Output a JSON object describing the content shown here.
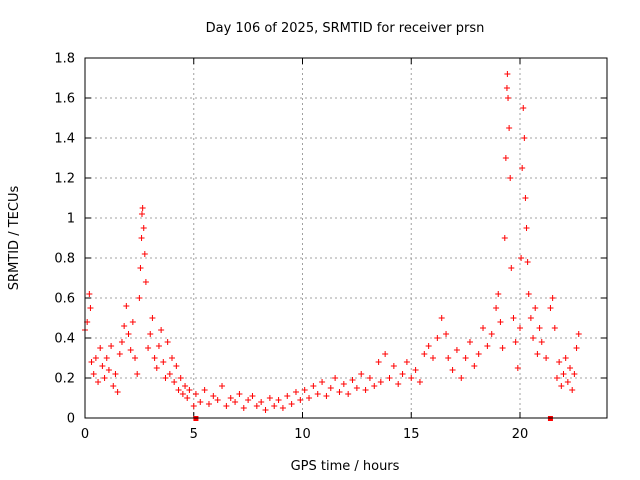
{
  "chart_data": {
    "type": "scatter",
    "title": "Day 106 of 2025, SRMTID for receiver prsn",
    "xlabel": "GPS time / hours",
    "ylabel": "SRMTID / TECUs",
    "xlim": [
      0,
      24
    ],
    "ylim": [
      0,
      1.8
    ],
    "xticks": [
      0,
      5,
      10,
      15,
      20
    ],
    "xtick_labels": [
      "0",
      "5",
      "10",
      "15",
      "20"
    ],
    "yticks": [
      0,
      0.2,
      0.4,
      0.6,
      0.8,
      1.0,
      1.2,
      1.4,
      1.6,
      1.8
    ],
    "ytick_labels": [
      "0",
      "0.2",
      "0.4",
      "0.6",
      "0.8",
      "1",
      "1.2",
      "1.4",
      "1.6",
      "1.8"
    ],
    "grid": true,
    "marker": "+",
    "color": "#ff0000",
    "series": [
      {
        "name": "SRMTID",
        "points": [
          [
            0.0,
            0.44
          ],
          [
            0.1,
            0.48
          ],
          [
            0.2,
            0.62
          ],
          [
            0.25,
            0.55
          ],
          [
            0.3,
            0.28
          ],
          [
            0.4,
            0.22
          ],
          [
            0.5,
            0.3
          ],
          [
            0.6,
            0.18
          ],
          [
            0.7,
            0.35
          ],
          [
            0.8,
            0.26
          ],
          [
            0.9,
            0.2
          ],
          [
            1.0,
            0.3
          ],
          [
            1.1,
            0.24
          ],
          [
            1.2,
            0.36
          ],
          [
            1.3,
            0.16
          ],
          [
            1.4,
            0.22
          ],
          [
            1.5,
            0.13
          ],
          [
            1.6,
            0.32
          ],
          [
            1.7,
            0.38
          ],
          [
            1.8,
            0.46
          ],
          [
            1.9,
            0.56
          ],
          [
            2.0,
            0.42
          ],
          [
            2.1,
            0.34
          ],
          [
            2.2,
            0.48
          ],
          [
            2.3,
            0.3
          ],
          [
            2.4,
            0.22
          ],
          [
            2.5,
            0.6
          ],
          [
            2.55,
            0.75
          ],
          [
            2.6,
            0.9
          ],
          [
            2.62,
            1.02
          ],
          [
            2.65,
            1.05
          ],
          [
            2.7,
            0.95
          ],
          [
            2.75,
            0.82
          ],
          [
            2.8,
            0.68
          ],
          [
            2.9,
            0.35
          ],
          [
            3.0,
            0.42
          ],
          [
            3.1,
            0.5
          ],
          [
            3.2,
            0.3
          ],
          [
            3.3,
            0.25
          ],
          [
            3.4,
            0.36
          ],
          [
            3.5,
            0.44
          ],
          [
            3.6,
            0.28
          ],
          [
            3.7,
            0.2
          ],
          [
            3.8,
            0.38
          ],
          [
            3.9,
            0.22
          ],
          [
            4.0,
            0.3
          ],
          [
            4.1,
            0.18
          ],
          [
            4.2,
            0.26
          ],
          [
            4.3,
            0.14
          ],
          [
            4.4,
            0.2
          ],
          [
            4.5,
            0.12
          ],
          [
            4.6,
            0.16
          ],
          [
            4.7,
            0.1
          ],
          [
            4.8,
            0.14
          ],
          [
            5.0,
            0.06
          ],
          [
            5.1,
            0.12
          ],
          [
            5.3,
            0.08
          ],
          [
            5.5,
            0.14
          ],
          [
            5.7,
            0.07
          ],
          [
            5.9,
            0.11
          ],
          [
            6.1,
            0.09
          ],
          [
            6.3,
            0.16
          ],
          [
            6.5,
            0.06
          ],
          [
            6.7,
            0.1
          ],
          [
            6.9,
            0.08
          ],
          [
            7.1,
            0.12
          ],
          [
            7.3,
            0.05
          ],
          [
            7.5,
            0.09
          ],
          [
            7.7,
            0.11
          ],
          [
            7.9,
            0.06
          ],
          [
            8.1,
            0.08
          ],
          [
            8.3,
            0.04
          ],
          [
            8.5,
            0.1
          ],
          [
            8.7,
            0.06
          ],
          [
            8.9,
            0.09
          ],
          [
            9.1,
            0.05
          ],
          [
            9.3,
            0.11
          ],
          [
            9.5,
            0.07
          ],
          [
            9.7,
            0.13
          ],
          [
            9.9,
            0.09
          ],
          [
            10.1,
            0.14
          ],
          [
            10.3,
            0.1
          ],
          [
            10.5,
            0.16
          ],
          [
            10.7,
            0.12
          ],
          [
            10.9,
            0.18
          ],
          [
            11.1,
            0.11
          ],
          [
            11.3,
            0.15
          ],
          [
            11.5,
            0.2
          ],
          [
            11.7,
            0.13
          ],
          [
            11.9,
            0.17
          ],
          [
            12.1,
            0.12
          ],
          [
            12.3,
            0.19
          ],
          [
            12.5,
            0.15
          ],
          [
            12.7,
            0.22
          ],
          [
            12.9,
            0.14
          ],
          [
            13.1,
            0.2
          ],
          [
            13.3,
            0.16
          ],
          [
            13.5,
            0.28
          ],
          [
            13.6,
            0.18
          ],
          [
            13.8,
            0.32
          ],
          [
            14.0,
            0.2
          ],
          [
            14.2,
            0.26
          ],
          [
            14.4,
            0.17
          ],
          [
            14.6,
            0.22
          ],
          [
            14.8,
            0.28
          ],
          [
            15.0,
            0.2
          ],
          [
            15.2,
            0.24
          ],
          [
            15.4,
            0.18
          ],
          [
            15.6,
            0.32
          ],
          [
            15.8,
            0.36
          ],
          [
            16.0,
            0.3
          ],
          [
            16.2,
            0.4
          ],
          [
            16.4,
            0.5
          ],
          [
            16.6,
            0.42
          ],
          [
            16.7,
            0.3
          ],
          [
            16.9,
            0.24
          ],
          [
            17.1,
            0.34
          ],
          [
            17.3,
            0.2
          ],
          [
            17.5,
            0.3
          ],
          [
            17.7,
            0.38
          ],
          [
            17.9,
            0.26
          ],
          [
            18.1,
            0.32
          ],
          [
            18.3,
            0.45
          ],
          [
            18.5,
            0.36
          ],
          [
            18.7,
            0.42
          ],
          [
            18.9,
            0.55
          ],
          [
            19.0,
            0.62
          ],
          [
            19.1,
            0.48
          ],
          [
            19.2,
            0.35
          ],
          [
            19.3,
            0.9
          ],
          [
            19.35,
            1.3
          ],
          [
            19.4,
            1.65
          ],
          [
            19.42,
            1.72
          ],
          [
            19.45,
            1.6
          ],
          [
            19.5,
            1.45
          ],
          [
            19.55,
            1.2
          ],
          [
            19.6,
            0.75
          ],
          [
            19.7,
            0.5
          ],
          [
            19.8,
            0.38
          ],
          [
            19.9,
            0.25
          ],
          [
            20.0,
            0.45
          ],
          [
            20.05,
            0.8
          ],
          [
            20.1,
            1.25
          ],
          [
            20.15,
            1.55
          ],
          [
            20.2,
            1.4
          ],
          [
            20.25,
            1.1
          ],
          [
            20.3,
            0.95
          ],
          [
            20.35,
            0.78
          ],
          [
            20.4,
            0.62
          ],
          [
            20.5,
            0.5
          ],
          [
            20.6,
            0.4
          ],
          [
            20.7,
            0.55
          ],
          [
            20.8,
            0.32
          ],
          [
            20.9,
            0.45
          ],
          [
            21.0,
            0.38
          ],
          [
            21.2,
            0.3
          ],
          [
            21.4,
            0.55
          ],
          [
            21.5,
            0.6
          ],
          [
            21.6,
            0.45
          ],
          [
            21.7,
            0.2
          ],
          [
            21.8,
            0.28
          ],
          [
            21.9,
            0.16
          ],
          [
            22.0,
            0.22
          ],
          [
            22.1,
            0.3
          ],
          [
            22.2,
            0.18
          ],
          [
            22.3,
            0.25
          ],
          [
            22.4,
            0.14
          ],
          [
            22.5,
            0.22
          ],
          [
            22.6,
            0.35
          ],
          [
            22.7,
            0.42
          ]
        ]
      }
    ],
    "axis_markers_x": [
      5.1,
      21.4
    ]
  }
}
